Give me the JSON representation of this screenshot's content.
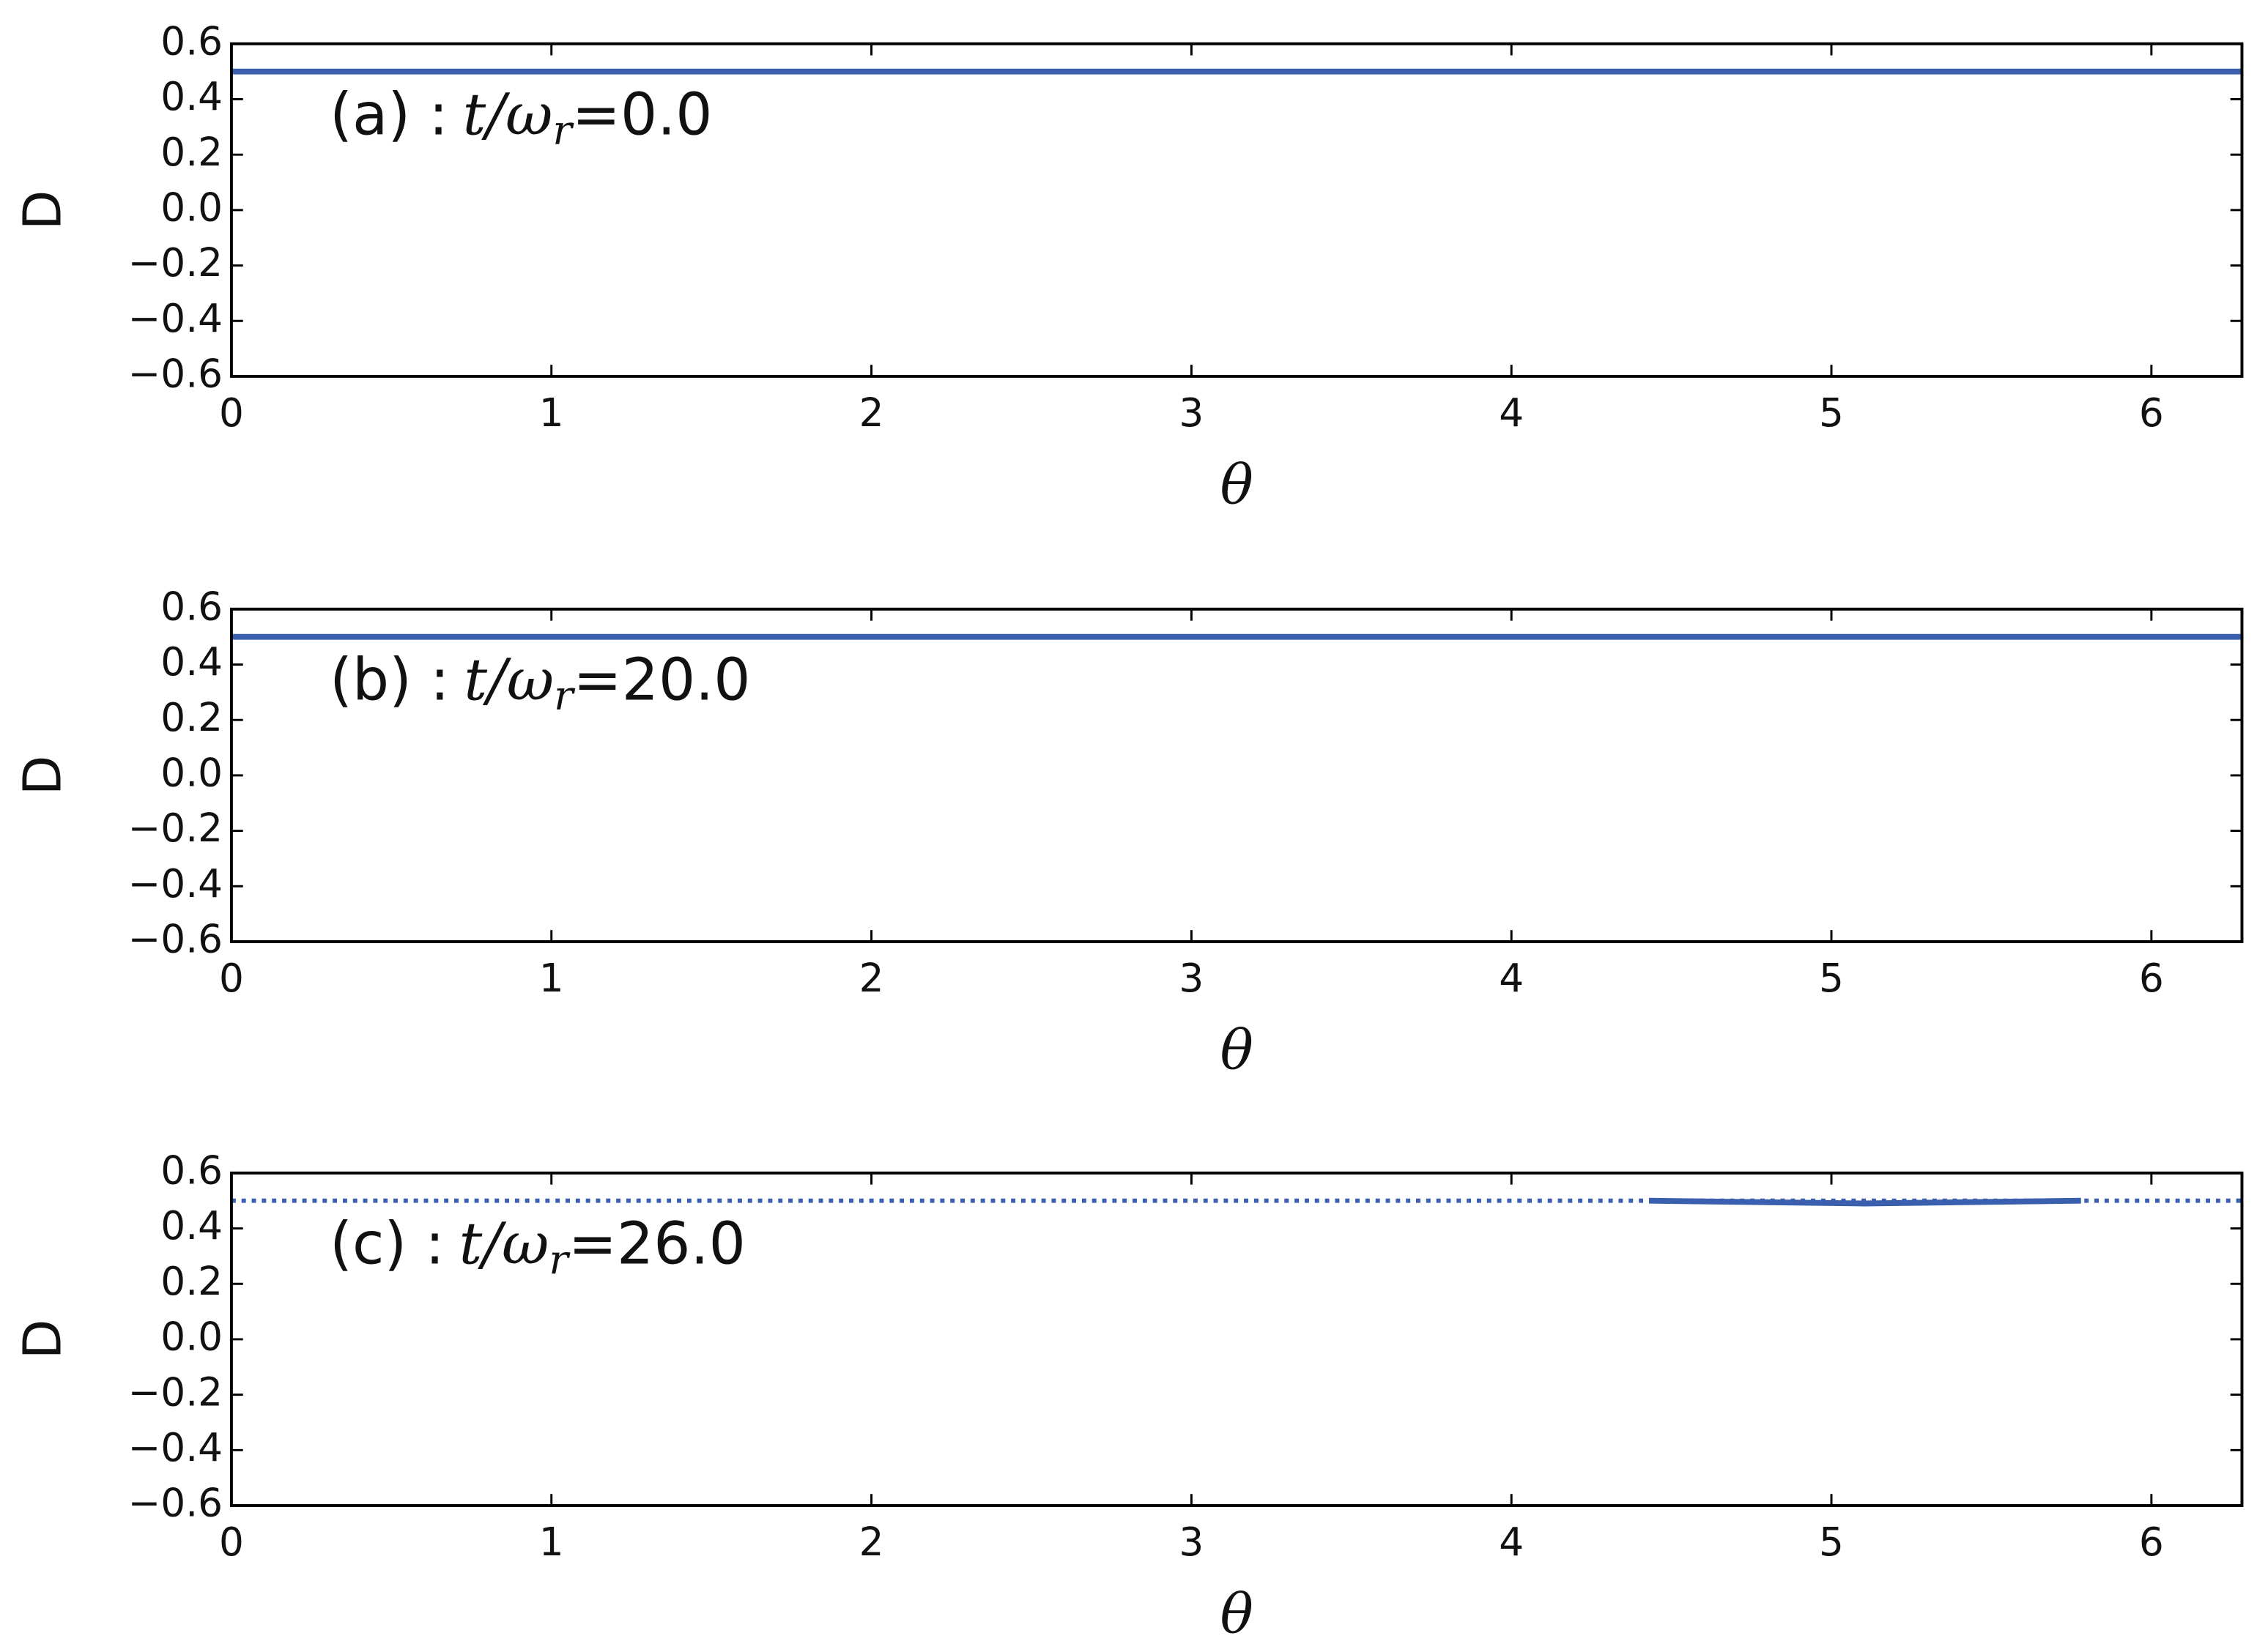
{
  "chart_data": [
    {
      "type": "line",
      "xlabel": "θ",
      "ylabel": "D",
      "annotation": {
        "prefix": "(a) :",
        "math": "t/ω",
        "sub": "r",
        "suffix": "=0.0"
      },
      "xlim": [
        0,
        6.283
      ],
      "ylim": [
        -0.6,
        0.6
      ],
      "xticks": [
        0,
        1,
        2,
        3,
        4,
        5,
        6
      ],
      "yticks": [
        {
          "value": -0.6,
          "label": "−0.6"
        },
        {
          "value": -0.4,
          "label": "−0.4"
        },
        {
          "value": -0.2,
          "label": "−0.2"
        },
        {
          "value": 0,
          "label": "0.0"
        },
        0.2,
        0.4,
        0.6
      ],
      "series": [
        {
          "color": "#3a5fae",
          "style": "solid",
          "x": [
            0,
            6.283
          ],
          "values": [
            0.5,
            0.5
          ]
        }
      ]
    },
    {
      "type": "line",
      "xlabel": "θ",
      "ylabel": "D",
      "annotation": {
        "prefix": "(b) :",
        "math": "t/ω",
        "sub": "r",
        "suffix": "=20.0"
      },
      "xlim": [
        0,
        6.283
      ],
      "ylim": [
        -0.6,
        0.6
      ],
      "xticks": [
        0,
        1,
        2,
        3,
        4,
        5,
        6
      ],
      "yticks": [
        {
          "value": -0.6,
          "label": "−0.6"
        },
        {
          "value": -0.4,
          "label": "−0.4"
        },
        {
          "value": -0.2,
          "label": "−0.2"
        },
        {
          "value": 0,
          "label": "0.0"
        },
        0.2,
        0.4,
        0.6
      ],
      "series": [
        {
          "color": "#3a5fae",
          "style": "solid",
          "x": [
            0,
            6.283
          ],
          "values": [
            0.5,
            0.5
          ]
        }
      ]
    },
    {
      "type": "line",
      "xlabel": "θ",
      "ylabel": "D",
      "annotation": {
        "prefix": "(c) :",
        "math": "t/ω",
        "sub": "r",
        "suffix": "=26.0"
      },
      "xlim": [
        0,
        6.283
      ],
      "ylim": [
        -0.6,
        0.6
      ],
      "xticks": [
        0,
        1,
        2,
        3,
        4,
        5,
        6
      ],
      "yticks": [
        {
          "value": -0.6,
          "label": "−0.6"
        },
        {
          "value": -0.4,
          "label": "−0.4"
        },
        {
          "value": -0.2,
          "label": "−0.2"
        },
        {
          "value": 0,
          "label": "0.0"
        },
        0.2,
        0.4,
        0.6
      ],
      "series": [
        {
          "color": "#3a5fae",
          "style": "dotted",
          "x": [
            0,
            6.283
          ],
          "values": [
            0.5,
            0.5
          ]
        },
        {
          "color": "#3a5fae",
          "style": "solid",
          "x": [
            4.43,
            5.1,
            5.78
          ],
          "values": [
            0.5,
            0.49,
            0.5
          ]
        }
      ]
    }
  ]
}
